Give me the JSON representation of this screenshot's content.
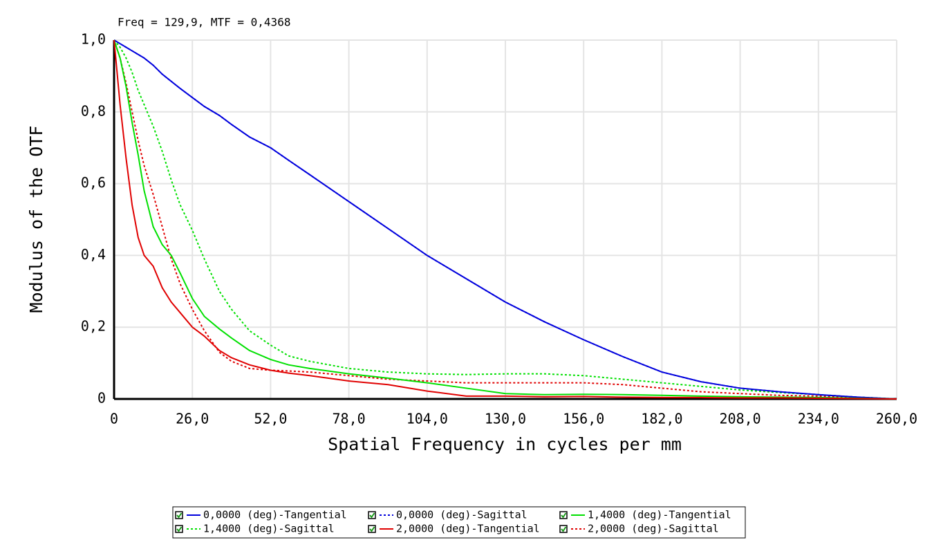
{
  "chart_data": {
    "type": "line",
    "annotation": "Freq = 129,9, MTF = 0,4368",
    "x_label": "Spatial Frequency in cycles per mm",
    "y_label": "Modulus of the OTF",
    "x": [
      0,
      2,
      4,
      6,
      8,
      10,
      13,
      16,
      19,
      22,
      26,
      30,
      35,
      39,
      45,
      52,
      58,
      65,
      78,
      91,
      104,
      117,
      130,
      143,
      156,
      169,
      182,
      195,
      208,
      221,
      234,
      247,
      260
    ],
    "series": [
      {
        "name": "0,0000 (deg)-Tangential",
        "color": "#0000dd",
        "dash": false,
        "values": [
          1.0,
          0.99,
          0.98,
          0.97,
          0.96,
          0.95,
          0.93,
          0.905,
          0.885,
          0.865,
          0.84,
          0.815,
          0.79,
          0.765,
          0.73,
          0.7,
          0.665,
          0.625,
          0.55,
          0.475,
          0.4,
          0.335,
          0.27,
          0.215,
          0.165,
          0.118,
          0.075,
          0.048,
          0.03,
          0.02,
          0.012,
          0.005,
          0
        ]
      },
      {
        "name": "0,0000 (deg)-Sagittal",
        "color": "#0000dd",
        "dash": true,
        "values": [
          1.0,
          0.99,
          0.98,
          0.97,
          0.96,
          0.95,
          0.93,
          0.905,
          0.885,
          0.865,
          0.84,
          0.815,
          0.79,
          0.765,
          0.73,
          0.7,
          0.665,
          0.625,
          0.55,
          0.475,
          0.4,
          0.335,
          0.27,
          0.215,
          0.165,
          0.118,
          0.075,
          0.048,
          0.03,
          0.02,
          0.012,
          0.005,
          0
        ]
      },
      {
        "name": "1,4000 (deg)-Tangential",
        "color": "#00e000",
        "dash": false,
        "values": [
          1.0,
          0.95,
          0.87,
          0.77,
          0.68,
          0.58,
          0.48,
          0.43,
          0.4,
          0.35,
          0.28,
          0.23,
          0.195,
          0.17,
          0.135,
          0.11,
          0.095,
          0.085,
          0.07,
          0.058,
          0.045,
          0.03,
          0.015,
          0.012,
          0.013,
          0.012,
          0.01,
          0.008,
          0.006,
          0.005,
          0.004,
          0.002,
          0
        ]
      },
      {
        "name": "1,4000 (deg)-Sagittal",
        "color": "#00e000",
        "dash": true,
        "values": [
          1.0,
          0.98,
          0.95,
          0.91,
          0.86,
          0.82,
          0.76,
          0.69,
          0.61,
          0.54,
          0.47,
          0.39,
          0.3,
          0.25,
          0.19,
          0.15,
          0.12,
          0.105,
          0.085,
          0.075,
          0.07,
          0.068,
          0.07,
          0.07,
          0.065,
          0.055,
          0.045,
          0.035,
          0.025,
          0.018,
          0.012,
          0.005,
          0
        ]
      },
      {
        "name": "2,0000 (deg)-Tangential",
        "color": "#e00000",
        "dash": false,
        "values": [
          1.0,
          0.82,
          0.67,
          0.54,
          0.45,
          0.4,
          0.37,
          0.31,
          0.27,
          0.24,
          0.2,
          0.175,
          0.135,
          0.115,
          0.095,
          0.08,
          0.072,
          0.065,
          0.05,
          0.04,
          0.022,
          0.008,
          0.008,
          0.006,
          0.007,
          0.005,
          0.004,
          0.004,
          0.003,
          0.003,
          0.002,
          0.001,
          0
        ]
      },
      {
        "name": "2,0000 (deg)-Sagittal",
        "color": "#e00000",
        "dash": true,
        "values": [
          1.0,
          0.95,
          0.88,
          0.8,
          0.72,
          0.65,
          0.57,
          0.48,
          0.39,
          0.32,
          0.25,
          0.19,
          0.13,
          0.105,
          0.085,
          0.08,
          0.078,
          0.075,
          0.065,
          0.055,
          0.05,
          0.045,
          0.045,
          0.045,
          0.045,
          0.04,
          0.03,
          0.02,
          0.015,
          0.01,
          0.008,
          0.004,
          0
        ]
      }
    ],
    "xlim": [
      0,
      260
    ],
    "xticks": [
      0,
      {
        "value": 26,
        "label": "26,0"
      },
      {
        "value": 52,
        "label": "52,0"
      },
      {
        "value": 78,
        "label": "78,0"
      },
      {
        "value": 104,
        "label": "104,0"
      },
      {
        "value": 130,
        "label": "130,0"
      },
      {
        "value": 156,
        "label": "156,0"
      },
      {
        "value": 182,
        "label": "182,0"
      },
      {
        "value": 208,
        "label": "208,0"
      },
      {
        "value": 234,
        "label": "234,0"
      },
      {
        "value": 260,
        "label": "260,0"
      }
    ],
    "ylim": [
      0,
      1
    ],
    "yticks": [
      0,
      {
        "value": 0.2,
        "label": "0,2"
      },
      {
        "value": 0.4,
        "label": "0,4"
      },
      {
        "value": 0.6,
        "label": "0,6"
      },
      {
        "value": 0.8,
        "label": "0,8"
      },
      {
        "value": 1,
        "label": "1,0"
      }
    ],
    "grid": true,
    "legend": "bottom"
  }
}
